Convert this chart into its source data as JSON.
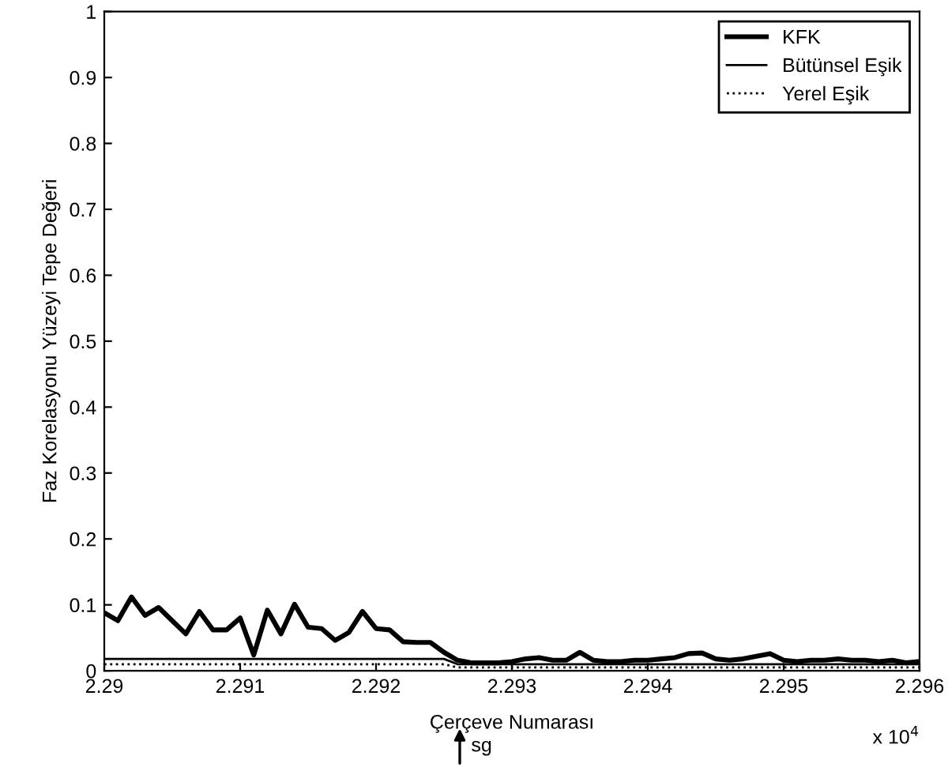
{
  "chart_data": {
    "type": "line",
    "xlabel": "Çerçeve Numarası",
    "ylabel": "Faz Korelasyonu Yüzeyi Tepe Değeri",
    "xlim": [
      2.29,
      2.296
    ],
    "ylim": [
      0,
      1
    ],
    "xticks": [
      2.29,
      2.291,
      2.292,
      2.293,
      2.294,
      2.295,
      2.296
    ],
    "yticks": [
      0,
      0.1,
      0.2,
      0.3,
      0.4,
      0.5,
      0.6,
      0.7,
      0.8,
      0.9,
      1
    ],
    "grid": false,
    "legend": "top right",
    "marker": "none",
    "annotations": [
      "x 10$^{4}$",
      "sg"
    ],
    "series": [
      {
        "name": "KFK",
        "color": "#000000",
        "line_style": "solid",
        "x": [
          2.29,
          2.2901,
          2.2902,
          2.2903,
          2.2904,
          2.2905,
          2.2906,
          2.2907,
          2.2908,
          2.2909,
          2.291,
          2.2911,
          2.2912,
          2.2913,
          2.2914,
          2.2915,
          2.2916,
          2.2917,
          2.2918,
          2.2919,
          2.292,
          2.2921,
          2.2922,
          2.2923,
          2.2924,
          2.2925,
          2.2926,
          2.2927,
          2.2928,
          2.2929,
          2.293,
          2.2931,
          2.2932,
          2.2933,
          2.2934,
          2.2935,
          2.2936,
          2.2937,
          2.2938,
          2.2939,
          2.294,
          2.2941,
          2.2942,
          2.2943,
          2.2944,
          2.2945,
          2.2946,
          2.2947,
          2.2948,
          2.2949,
          2.295,
          2.2951,
          2.2952,
          2.2953,
          2.2954,
          2.2955,
          2.2956,
          2.2957,
          2.2958,
          2.2959,
          2.296
        ],
        "values": [
          0.088,
          0.076,
          0.112,
          0.084,
          0.096,
          0.076,
          0.056,
          0.09,
          0.062,
          0.062,
          0.08,
          0.024,
          0.092,
          0.056,
          0.101,
          0.066,
          0.064,
          0.046,
          0.058,
          0.09,
          0.064,
          0.062,
          0.044,
          0.043,
          0.043,
          0.028,
          0.016,
          0.012,
          0.012,
          0.012,
          0.014,
          0.018,
          0.02,
          0.016,
          0.016,
          0.028,
          0.016,
          0.014,
          0.014,
          0.016,
          0.016,
          0.018,
          0.02,
          0.026,
          0.027,
          0.018,
          0.016,
          0.018,
          0.022,
          0.026,
          0.016,
          0.014,
          0.016,
          0.016,
          0.018,
          0.016,
          0.016,
          0.014,
          0.016,
          0.012,
          0.014
        ]
      },
      {
        "name": "Bütünsel Eşik",
        "color": "#000000",
        "line_style": "solid",
        "x": [
          2.29,
          2.2925,
          2.2926,
          2.296
        ],
        "values": [
          0.018,
          0.018,
          0.01,
          0.01
        ]
      },
      {
        "name": "Yerel Eşik",
        "color": "#000000",
        "line_style": "dotted",
        "x": [
          2.29,
          2.2925,
          2.2926,
          2.296
        ],
        "values": [
          0.01,
          0.01,
          0.005,
          0.005
        ]
      }
    ]
  }
}
